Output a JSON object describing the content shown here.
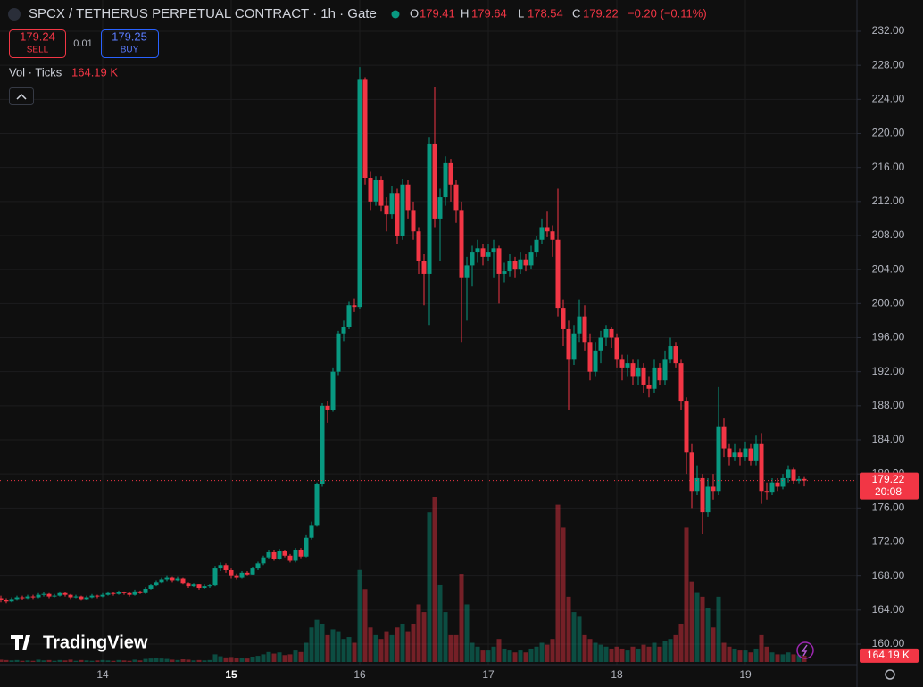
{
  "header": {
    "symbol": "SPCX / TETHERUS PERPETUAL CONTRACT · 1h · Gate",
    "ohlc_labels": [
      "O",
      "H",
      "L",
      "C"
    ],
    "change": "−0.20 (−0.11%)"
  },
  "trade": {
    "sell_price": "179.24",
    "sell": "SELL",
    "spread": "0.01",
    "buy_price": "179.25",
    "buy": "BUY"
  },
  "logo": "TradingView",
  "chart_data": {
    "type": "candlestick",
    "volume_title": "Vol · Ticks",
    "volume_label": "164.19 K",
    "countdown": "20:08",
    "up_color": "#089981",
    "down_color": "#f23645",
    "grid": true,
    "day_labels": [
      "14",
      "15",
      "16",
      "17",
      "18",
      "19"
    ],
    "ylim": [
      160,
      232
    ],
    "yticks": [
      {
        "value": 160,
        "label": "160.00"
      },
      {
        "value": 164,
        "label": "164.00"
      },
      {
        "value": 168,
        "label": "168.00"
      },
      {
        "value": 172,
        "label": "172.00"
      },
      {
        "value": 176,
        "label": "176.00"
      },
      {
        "value": 180,
        "label": "180.00"
      },
      {
        "value": 184,
        "label": "184.00"
      },
      {
        "value": 188,
        "label": "188.00"
      },
      {
        "value": 192,
        "label": "192.00"
      },
      {
        "value": 196,
        "label": "196.00"
      },
      {
        "value": 200,
        "label": "200.00"
      },
      {
        "value": 204,
        "label": "204.00"
      },
      {
        "value": 208,
        "label": "208.00"
      },
      {
        "value": 212,
        "label": "212.00"
      },
      {
        "value": 216,
        "label": "216.00"
      },
      {
        "value": 220,
        "label": "220.00"
      },
      {
        "value": 224,
        "label": "224.00"
      },
      {
        "value": 228,
        "label": "228.00"
      },
      {
        "value": 232,
        "label": "232.00"
      }
    ],
    "candles": [
      [
        165.4,
        165.7,
        164.9,
        165.2,
        60000
      ],
      [
        165.2,
        165.4,
        164.8,
        165.0,
        50000
      ],
      [
        165.0,
        165.5,
        164.9,
        165.3,
        40000
      ],
      [
        165.3,
        165.7,
        165.1,
        165.5,
        50000
      ],
      [
        165.5,
        165.7,
        165.2,
        165.4,
        30000
      ],
      [
        165.4,
        165.8,
        165.3,
        165.6,
        40000
      ],
      [
        165.6,
        165.8,
        165.3,
        165.5,
        30000
      ],
      [
        165.5,
        166.0,
        165.4,
        165.8,
        60000
      ],
      [
        165.8,
        166.1,
        165.6,
        165.9,
        40000
      ],
      [
        165.9,
        166.0,
        165.4,
        165.6,
        50000
      ],
      [
        165.6,
        165.9,
        165.5,
        165.7,
        30000
      ],
      [
        165.7,
        166.2,
        165.6,
        166.0,
        50000
      ],
      [
        166.0,
        166.1,
        165.6,
        165.8,
        40000
      ],
      [
        165.8,
        165.9,
        165.3,
        165.5,
        60000
      ],
      [
        165.5,
        165.8,
        165.4,
        165.6,
        30000
      ],
      [
        165.6,
        165.7,
        165.1,
        165.3,
        50000
      ],
      [
        165.3,
        165.7,
        165.2,
        165.5,
        40000
      ],
      [
        165.5,
        165.9,
        165.4,
        165.7,
        30000
      ],
      [
        165.7,
        165.8,
        165.4,
        165.6,
        40000
      ],
      [
        165.6,
        166.0,
        165.5,
        165.8,
        50000
      ],
      [
        165.8,
        166.2,
        165.7,
        166.0,
        40000
      ],
      [
        166.0,
        166.1,
        165.7,
        165.9,
        30000
      ],
      [
        165.9,
        166.3,
        165.8,
        166.1,
        50000
      ],
      [
        166.1,
        166.2,
        165.8,
        166.0,
        40000
      ],
      [
        166.0,
        166.1,
        165.6,
        165.8,
        30000
      ],
      [
        165.8,
        166.4,
        165.7,
        166.2,
        60000
      ],
      [
        166.2,
        166.3,
        165.9,
        166.0,
        40000
      ],
      [
        166.0,
        166.7,
        165.9,
        166.5,
        80000
      ],
      [
        166.5,
        167.1,
        166.4,
        166.9,
        90000
      ],
      [
        166.9,
        167.5,
        166.8,
        167.3,
        100000
      ],
      [
        167.3,
        167.8,
        167.2,
        167.6,
        90000
      ],
      [
        167.6,
        168.0,
        167.4,
        167.8,
        80000
      ],
      [
        167.8,
        167.9,
        167.3,
        167.5,
        60000
      ],
      [
        167.5,
        167.9,
        167.4,
        167.7,
        50000
      ],
      [
        167.7,
        167.8,
        167.0,
        167.2,
        70000
      ],
      [
        167.2,
        167.3,
        166.6,
        166.8,
        60000
      ],
      [
        166.8,
        167.2,
        166.7,
        167.0,
        40000
      ],
      [
        167.0,
        167.1,
        166.4,
        166.6,
        50000
      ],
      [
        166.6,
        167.0,
        166.5,
        166.8,
        40000
      ],
      [
        166.8,
        167.1,
        166.6,
        166.9,
        50000
      ],
      [
        166.9,
        169.2,
        166.8,
        168.9,
        200000
      ],
      [
        168.9,
        169.6,
        168.6,
        169.3,
        150000
      ],
      [
        169.3,
        169.5,
        168.4,
        168.7,
        120000
      ],
      [
        168.7,
        168.9,
        167.7,
        168.0,
        130000
      ],
      [
        168.0,
        168.3,
        167.6,
        167.8,
        100000
      ],
      [
        167.8,
        168.6,
        167.7,
        168.4,
        110000
      ],
      [
        168.4,
        168.6,
        168.0,
        168.2,
        90000
      ],
      [
        168.2,
        169.1,
        168.1,
        168.9,
        140000
      ],
      [
        168.9,
        169.7,
        168.7,
        169.5,
        160000
      ],
      [
        169.5,
        170.4,
        169.3,
        170.2,
        200000
      ],
      [
        170.2,
        171.0,
        170.0,
        170.8,
        260000
      ],
      [
        170.8,
        171.0,
        169.8,
        170.0,
        220000
      ],
      [
        170.0,
        171.2,
        169.9,
        170.9,
        250000
      ],
      [
        170.9,
        171.1,
        170.2,
        170.4,
        180000
      ],
      [
        170.4,
        170.6,
        169.6,
        169.8,
        200000
      ],
      [
        169.8,
        171.3,
        169.6,
        171.1,
        300000
      ],
      [
        171.1,
        171.3,
        170.1,
        170.3,
        260000
      ],
      [
        170.3,
        172.8,
        170.2,
        172.5,
        500000
      ],
      [
        172.5,
        174.4,
        172.3,
        174.0,
        900000
      ],
      [
        174.0,
        179.0,
        173.8,
        178.8,
        1100000
      ],
      [
        178.8,
        188.3,
        178.5,
        188.0,
        1000000
      ],
      [
        188.0,
        188.6,
        186.0,
        187.5,
        700000
      ],
      [
        187.5,
        192.5,
        187.3,
        192.0,
        850000
      ],
      [
        192.0,
        196.8,
        191.6,
        196.5,
        800000
      ],
      [
        196.5,
        198.0,
        195.6,
        197.3,
        600000
      ],
      [
        197.3,
        200.3,
        197.0,
        199.8,
        650000
      ],
      [
        199.8,
        200.6,
        199.0,
        199.6,
        500000
      ],
      [
        199.6,
        227.8,
        199.4,
        226.3,
        2400000
      ],
      [
        226.3,
        226.6,
        214.0,
        214.8,
        1900000
      ],
      [
        214.8,
        215.5,
        211.0,
        212.0,
        900000
      ],
      [
        212.0,
        215.0,
        211.5,
        214.5,
        700000
      ],
      [
        214.5,
        215.0,
        210.8,
        211.5,
        600000
      ],
      [
        211.5,
        212.5,
        208.5,
        210.5,
        800000
      ],
      [
        210.5,
        213.8,
        210.0,
        213.0,
        700000
      ],
      [
        213.0,
        213.5,
        207.0,
        208.0,
        900000
      ],
      [
        208.0,
        214.6,
        207.5,
        214.0,
        1000000
      ],
      [
        214.0,
        214.5,
        210.0,
        211.0,
        800000
      ],
      [
        211.0,
        212.0,
        207.5,
        208.5,
        1000000
      ],
      [
        208.5,
        209.0,
        203.5,
        205.0,
        1500000
      ],
      [
        205.0,
        205.8,
        199.8,
        203.5,
        1300000
      ],
      [
        203.5,
        219.5,
        197.5,
        218.8,
        3900000
      ],
      [
        218.8,
        225.4,
        209.0,
        210.0,
        4300000
      ],
      [
        210.0,
        213.5,
        205.0,
        212.5,
        2000000
      ],
      [
        212.5,
        217.3,
        211.5,
        216.5,
        1300000
      ],
      [
        216.5,
        217.0,
        212.0,
        214.0,
        700000
      ],
      [
        214.0,
        214.5,
        209.5,
        211.0,
        700000
      ],
      [
        211.0,
        212.0,
        195.5,
        203.0,
        2300000
      ],
      [
        203.0,
        205.5,
        198.0,
        204.5,
        1500000
      ],
      [
        204.5,
        206.8,
        202.0,
        206.0,
        500000
      ],
      [
        206.0,
        207.5,
        204.8,
        206.5,
        400000
      ],
      [
        206.5,
        207.0,
        204.5,
        205.5,
        300000
      ],
      [
        205.5,
        207.0,
        205.0,
        206.0,
        300000
      ],
      [
        206.0,
        207.5,
        203.0,
        206.5,
        400000
      ],
      [
        206.5,
        206.8,
        200.0,
        203.5,
        600000
      ],
      [
        203.5,
        204.8,
        202.5,
        203.8,
        350000
      ],
      [
        203.8,
        205.8,
        203.2,
        205.0,
        300000
      ],
      [
        205.0,
        205.5,
        203.0,
        204.0,
        250000
      ],
      [
        204.0,
        206.0,
        203.5,
        205.2,
        300000
      ],
      [
        205.2,
        205.8,
        203.8,
        204.5,
        250000
      ],
      [
        204.5,
        206.8,
        204.0,
        206.0,
        350000
      ],
      [
        206.0,
        208.0,
        205.5,
        207.5,
        400000
      ],
      [
        207.5,
        210.0,
        207.0,
        209.0,
        500000
      ],
      [
        209.0,
        210.8,
        207.8,
        208.5,
        450000
      ],
      [
        208.5,
        209.2,
        205.5,
        207.5,
        600000
      ],
      [
        207.5,
        213.5,
        198.5,
        199.5,
        4100000
      ],
      [
        199.5,
        200.5,
        195.0,
        197.0,
        3500000
      ],
      [
        197.0,
        198.0,
        187.5,
        193.5,
        1700000
      ],
      [
        193.5,
        197.5,
        192.8,
        196.5,
        1300000
      ],
      [
        196.5,
        200.5,
        195.5,
        198.5,
        1200000
      ],
      [
        198.5,
        199.8,
        194.5,
        195.5,
        700000
      ],
      [
        195.5,
        196.5,
        191.0,
        192.0,
        600000
      ],
      [
        192.0,
        195.5,
        191.5,
        194.5,
        500000
      ],
      [
        194.5,
        196.8,
        193.0,
        196.0,
        450000
      ],
      [
        196.0,
        197.5,
        195.0,
        197.0,
        400000
      ],
      [
        197.0,
        197.3,
        194.8,
        196.0,
        350000
      ],
      [
        196.0,
        196.5,
        192.5,
        193.5,
        400000
      ],
      [
        193.5,
        194.0,
        191.0,
        192.5,
        350000
      ],
      [
        192.5,
        194.0,
        191.5,
        193.0,
        300000
      ],
      [
        193.0,
        193.5,
        190.5,
        191.5,
        400000
      ],
      [
        191.5,
        193.5,
        190.5,
        192.5,
        350000
      ],
      [
        192.5,
        193.0,
        189.5,
        190.5,
        450000
      ],
      [
        190.5,
        191.5,
        189.0,
        190.0,
        400000
      ],
      [
        190.0,
        193.5,
        189.5,
        192.5,
        500000
      ],
      [
        192.5,
        193.0,
        190.5,
        191.0,
        400000
      ],
      [
        191.0,
        194.5,
        190.5,
        193.5,
        550000
      ],
      [
        193.5,
        196.0,
        193.0,
        195.0,
        600000
      ],
      [
        195.0,
        195.5,
        192.5,
        193.0,
        700000
      ],
      [
        193.0,
        193.5,
        187.5,
        188.5,
        1000000
      ],
      [
        188.5,
        189.0,
        180.0,
        182.5,
        3500000
      ],
      [
        182.5,
        183.5,
        176.0,
        178.0,
        2100000
      ],
      [
        178.0,
        181.0,
        177.5,
        179.5,
        1800000
      ],
      [
        179.5,
        180.0,
        173.0,
        175.5,
        1700000
      ],
      [
        175.5,
        179.5,
        175.0,
        178.5,
        1400000
      ],
      [
        178.5,
        180.0,
        177.0,
        178.0,
        900000
      ],
      [
        178.0,
        190.2,
        177.5,
        185.5,
        1700000
      ],
      [
        185.5,
        186.5,
        182.0,
        183.0,
        500000
      ],
      [
        183.0,
        183.5,
        181.0,
        182.0,
        400000
      ],
      [
        182.0,
        183.5,
        181.5,
        182.5,
        350000
      ],
      [
        182.5,
        183.0,
        181.0,
        182.0,
        300000
      ],
      [
        182.0,
        183.8,
        181.5,
        183.0,
        300000
      ],
      [
        183.0,
        183.5,
        181.0,
        181.5,
        250000
      ],
      [
        181.5,
        184.5,
        181.0,
        183.5,
        350000
      ],
      [
        183.5,
        184.8,
        176.5,
        178.0,
        700000
      ],
      [
        178.0,
        179.0,
        177.0,
        177.8,
        400000
      ],
      [
        177.8,
        179.5,
        177.5,
        179.0,
        250000
      ],
      [
        179.0,
        179.5,
        178.0,
        178.5,
        200000
      ],
      [
        178.5,
        180.0,
        178.2,
        179.5,
        200000
      ],
      [
        179.5,
        181.0,
        179.0,
        180.5,
        250000
      ],
      [
        180.5,
        180.8,
        178.8,
        179.2,
        200000
      ],
      [
        179.2,
        179.8,
        178.9,
        179.41,
        180000
      ],
      [
        179.41,
        179.64,
        178.54,
        179.22,
        164190
      ]
    ]
  }
}
